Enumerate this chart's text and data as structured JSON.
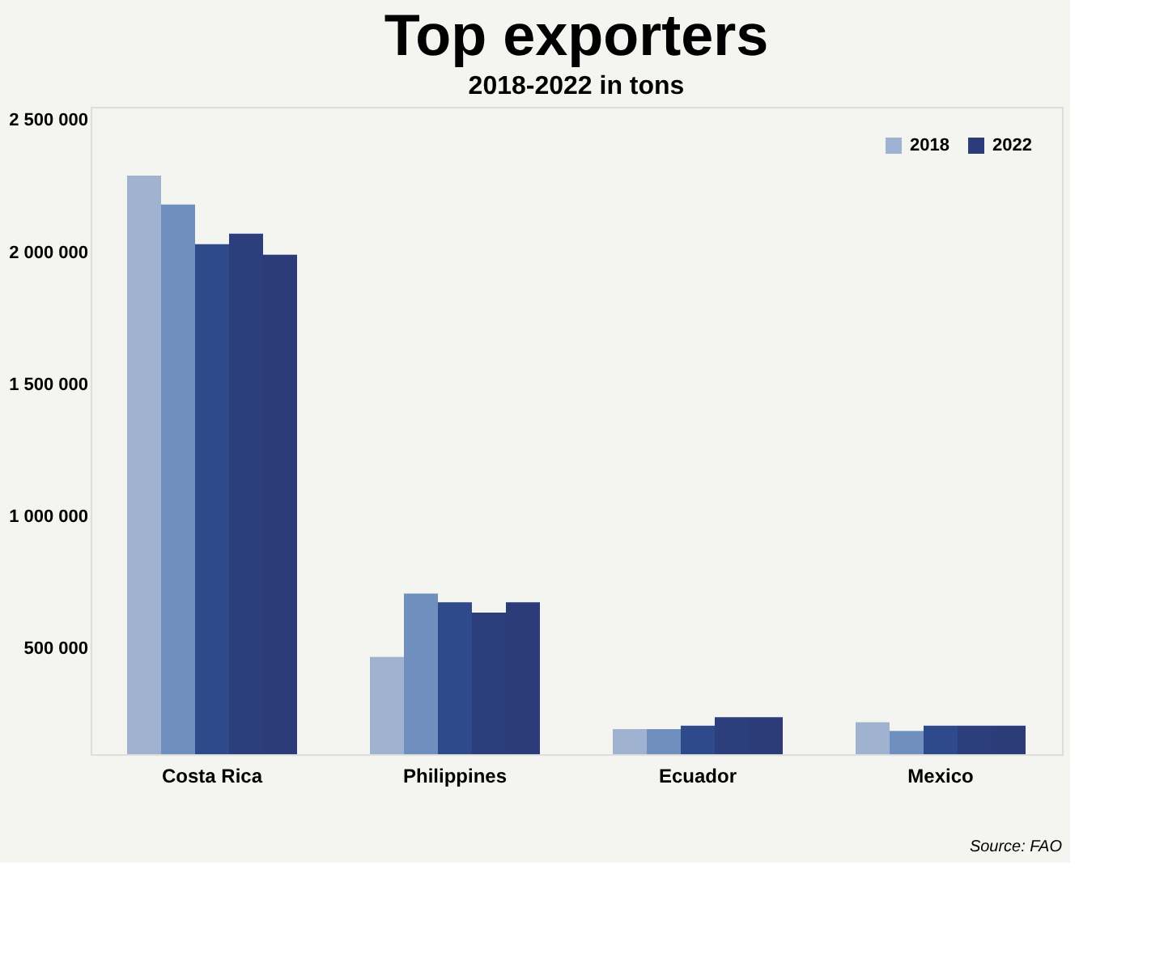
{
  "chart_data": {
    "type": "bar",
    "title": "Top exporters",
    "subtitle": "2018-2022 in tons",
    "categories": [
      "Costa Rica",
      "Philippines",
      "Ecuador",
      "Mexico"
    ],
    "series": [
      {
        "name": "2018",
        "color": "#9fb3d1",
        "values": [
          2290000,
          468000,
          195000,
          221000
        ]
      },
      {
        "color": "#6f8fbf",
        "values": [
          2180000,
          708000,
          195000,
          188000
        ]
      },
      {
        "color": "#2f4a8a",
        "values": [
          2030000,
          675000,
          208000,
          208000
        ]
      },
      {
        "color": "#2c3f7c",
        "values": [
          2070000,
          636000,
          240000,
          208000
        ]
      },
      {
        "name": "2022",
        "color": "#2b3c78",
        "values": [
          1990000,
          675000,
          240000,
          208000
        ]
      }
    ],
    "ylim": [
      100000,
      2550000
    ],
    "yticks": [
      {
        "value": 500000,
        "label": "500 000"
      },
      {
        "value": 1000000,
        "label": "1 000 000"
      },
      {
        "value": 1500000,
        "label": "1 500 000"
      },
      {
        "value": 2000000,
        "label": "2 000 000"
      },
      {
        "value": 2500000,
        "label": "2 500 000"
      }
    ],
    "grid": false,
    "legend": "top right",
    "annotations": [
      "Source: FAO"
    ]
  }
}
